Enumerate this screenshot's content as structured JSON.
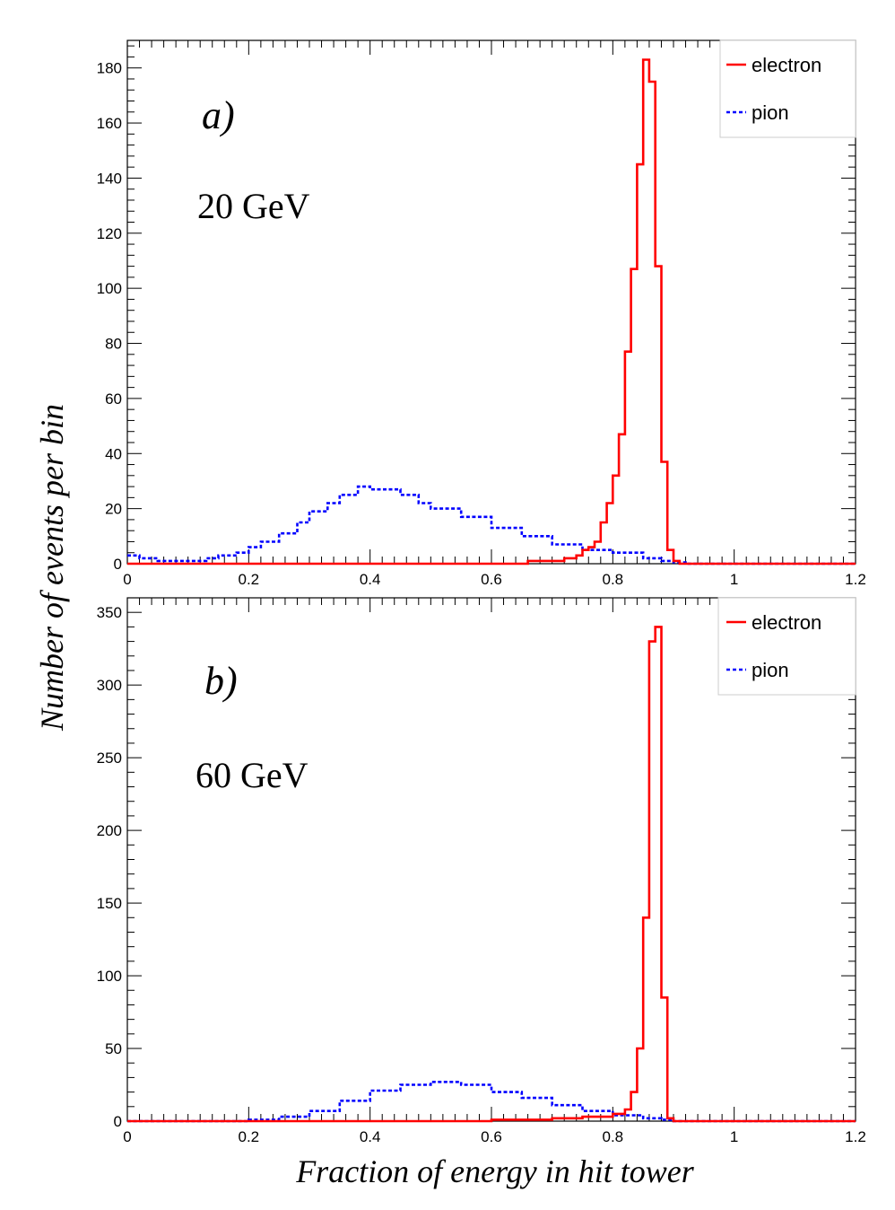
{
  "chart_data": [
    {
      "type": "line",
      "panel_label": "a)",
      "energy_label": "20 GeV",
      "xlim": [
        0,
        1.2
      ],
      "ylim": [
        0,
        190
      ],
      "xticks": [
        "0",
        "0.2",
        "0.4",
        "0.6",
        "0.8",
        "1",
        "1.2"
      ],
      "yticks": [
        "0",
        "20",
        "40",
        "60",
        "80",
        "100",
        "120",
        "140",
        "160",
        "180"
      ],
      "legend_position": "top-right",
      "series": [
        {
          "name": "electron",
          "color": "#ff0000",
          "style": "solid",
          "x": [
            0.0,
            0.3,
            0.5,
            0.6,
            0.66,
            0.7,
            0.72,
            0.74,
            0.75,
            0.76,
            0.77,
            0.78,
            0.79,
            0.8,
            0.81,
            0.82,
            0.83,
            0.84,
            0.85,
            0.86,
            0.87,
            0.88,
            0.89,
            0.9,
            0.91,
            1.2
          ],
          "y": [
            0,
            0,
            0,
            0,
            1,
            1,
            2,
            3,
            5,
            6,
            8,
            15,
            22,
            32,
            47,
            77,
            107,
            145,
            183,
            175,
            108,
            37,
            5,
            1,
            0,
            0
          ]
        },
        {
          "name": "pion",
          "color": "#0000ff",
          "style": "dashed",
          "x": [
            0.0,
            0.02,
            0.05,
            0.08,
            0.1,
            0.13,
            0.15,
            0.18,
            0.2,
            0.22,
            0.25,
            0.28,
            0.3,
            0.33,
            0.35,
            0.38,
            0.4,
            0.42,
            0.45,
            0.48,
            0.5,
            0.55,
            0.6,
            0.65,
            0.7,
            0.75,
            0.8,
            0.85,
            0.88,
            0.9,
            0.92,
            0.95,
            1.0,
            1.2
          ],
          "y": [
            3,
            2,
            1,
            1,
            1,
            2,
            3,
            4,
            6,
            8,
            11,
            15,
            19,
            22,
            25,
            28,
            27,
            27,
            25,
            22,
            20,
            17,
            13,
            10,
            7,
            5,
            4,
            2,
            1,
            0.5,
            0,
            0,
            0,
            0
          ]
        }
      ]
    },
    {
      "type": "line",
      "panel_label": "b)",
      "energy_label": "60 GeV",
      "xlim": [
        0,
        1.2
      ],
      "ylim": [
        0,
        360
      ],
      "xticks": [
        "0",
        "0.2",
        "0.4",
        "0.6",
        "0.8",
        "1",
        "1.2"
      ],
      "yticks": [
        "0",
        "50",
        "100",
        "150",
        "200",
        "250",
        "300",
        "350"
      ],
      "legend_position": "top-right",
      "series": [
        {
          "name": "electron",
          "color": "#ff0000",
          "style": "solid",
          "x": [
            0.0,
            0.3,
            0.5,
            0.6,
            0.7,
            0.75,
            0.8,
            0.82,
            0.83,
            0.84,
            0.85,
            0.86,
            0.87,
            0.88,
            0.89,
            0.9,
            1.2
          ],
          "y": [
            0,
            0,
            0,
            1,
            2,
            3,
            5,
            8,
            20,
            50,
            140,
            330,
            340,
            85,
            2,
            0,
            0
          ]
        },
        {
          "name": "pion",
          "color": "#0000ff",
          "style": "dashed",
          "x": [
            0.0,
            0.1,
            0.15,
            0.2,
            0.25,
            0.3,
            0.35,
            0.4,
            0.45,
            0.5,
            0.55,
            0.6,
            0.65,
            0.7,
            0.75,
            0.8,
            0.85,
            0.88,
            0.9,
            0.95,
            1.0,
            1.2
          ],
          "y": [
            0,
            0,
            0,
            1,
            3,
            7,
            14,
            21,
            25,
            27,
            25,
            20,
            16,
            11,
            7,
            4,
            2,
            1,
            0,
            0,
            0,
            0
          ]
        }
      ]
    }
  ],
  "shared": {
    "ylabel": "Number of events per bin",
    "xlabel": "Fraction of energy in hit tower"
  }
}
